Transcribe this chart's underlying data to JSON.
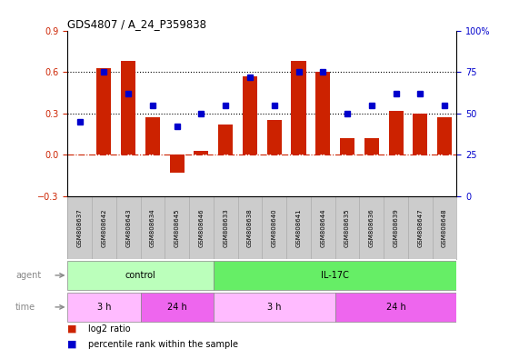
{
  "title": "GDS4807 / A_24_P359838",
  "samples": [
    "GSM808637",
    "GSM808642",
    "GSM808643",
    "GSM808634",
    "GSM808645",
    "GSM808646",
    "GSM808633",
    "GSM808638",
    "GSM808640",
    "GSM808641",
    "GSM808644",
    "GSM808635",
    "GSM808636",
    "GSM808639",
    "GSM808647",
    "GSM808648"
  ],
  "log2_ratio": [
    0.0,
    0.63,
    0.68,
    0.27,
    -0.13,
    0.03,
    0.22,
    0.57,
    0.25,
    0.68,
    0.6,
    0.12,
    0.12,
    0.32,
    0.3,
    0.27
  ],
  "percentile": [
    45,
    75,
    62,
    55,
    42,
    50,
    55,
    72,
    55,
    75,
    75,
    50,
    55,
    62,
    62,
    55
  ],
  "ylim_left": [
    -0.3,
    0.9
  ],
  "ylim_right": [
    0,
    100
  ],
  "yticks_left": [
    -0.3,
    0.0,
    0.3,
    0.6,
    0.9
  ],
  "yticks_right": [
    0,
    25,
    50,
    75,
    100
  ],
  "hlines": [
    0.3,
    0.6
  ],
  "bar_color": "#cc2200",
  "dot_color": "#0000cc",
  "zero_line_color": "#cc2200",
  "agent_control_color": "#bbffbb",
  "agent_il17c_color": "#66ee66",
  "time_3h_color": "#ffbbff",
  "time_24h_color": "#ee66ee",
  "agent_control_indices": [
    0,
    5
  ],
  "agent_il17c_indices": [
    6,
    15
  ],
  "time_3h_control_indices": [
    0,
    2
  ],
  "time_24h_control_indices": [
    3,
    5
  ],
  "time_3h_il17c_indices": [
    6,
    10
  ],
  "time_24h_il17c_indices": [
    11,
    15
  ],
  "label_color": "#888888",
  "sample_bg_color": "#cccccc",
  "sample_border_color": "#aaaaaa"
}
